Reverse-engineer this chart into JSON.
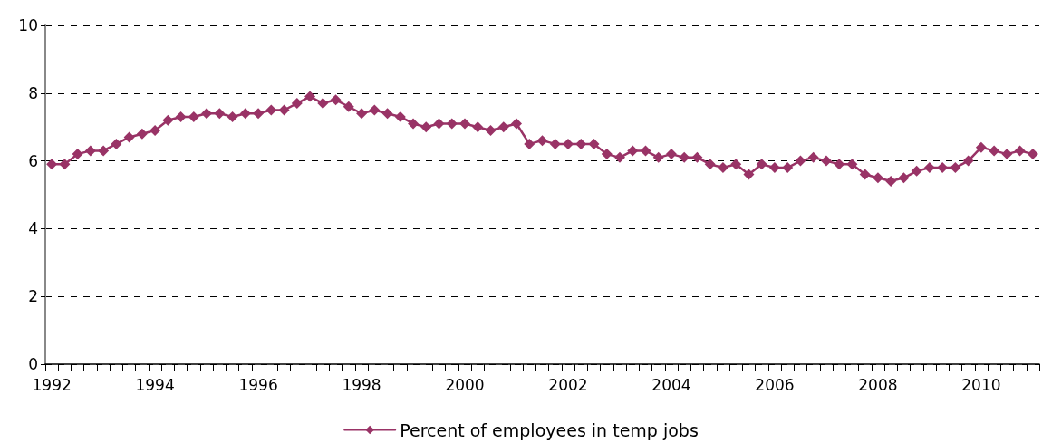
{
  "chart_data": {
    "type": "line",
    "categories": [
      "1992",
      null,
      null,
      null,
      null,
      null,
      null,
      null,
      "1994",
      null,
      null,
      null,
      null,
      null,
      null,
      null,
      "1996",
      null,
      null,
      null,
      null,
      null,
      null,
      null,
      "1998",
      null,
      null,
      null,
      null,
      null,
      null,
      null,
      "2000",
      null,
      null,
      null,
      null,
      null,
      null,
      null,
      "2002",
      null,
      null,
      null,
      null,
      null,
      null,
      null,
      "2004",
      null,
      null,
      null,
      null,
      null,
      null,
      null,
      "2006",
      null,
      null,
      null,
      null,
      null,
      null,
      null,
      "2008",
      null,
      null,
      null,
      null,
      null,
      null,
      null,
      "2010",
      null,
      null,
      null,
      null
    ],
    "series": [
      {
        "name": "Percent of employees in temp jobs",
        "color": "#993366",
        "values": [
          5.9,
          5.9,
          6.2,
          6.3,
          6.3,
          6.5,
          6.7,
          6.8,
          6.9,
          7.2,
          7.3,
          7.3,
          7.4,
          7.4,
          7.3,
          7.4,
          7.4,
          7.5,
          7.5,
          7.7,
          7.9,
          7.7,
          7.8,
          7.6,
          7.4,
          7.5,
          7.4,
          7.3,
          7.1,
          7.0,
          7.1,
          7.1,
          7.1,
          7.0,
          6.9,
          7.0,
          7.1,
          6.5,
          6.6,
          6.5,
          6.5,
          6.5,
          6.5,
          6.2,
          6.1,
          6.3,
          6.3,
          6.1,
          6.2,
          6.1,
          6.1,
          5.9,
          5.8,
          5.9,
          5.6,
          5.9,
          5.8,
          5.8,
          6.0,
          6.1,
          6.0,
          5.9,
          5.9,
          5.6,
          5.5,
          5.4,
          5.5,
          5.7,
          5.8,
          5.8,
          5.8,
          6.0,
          6.4,
          6.3,
          6.2,
          6.3,
          6.2
        ]
      }
    ],
    "ylim": [
      0,
      10
    ],
    "yticks": [
      0,
      2,
      4,
      6,
      8,
      10
    ],
    "grid": "y",
    "legend": "bottom",
    "marker": "diamond",
    "line_style": "solid"
  }
}
